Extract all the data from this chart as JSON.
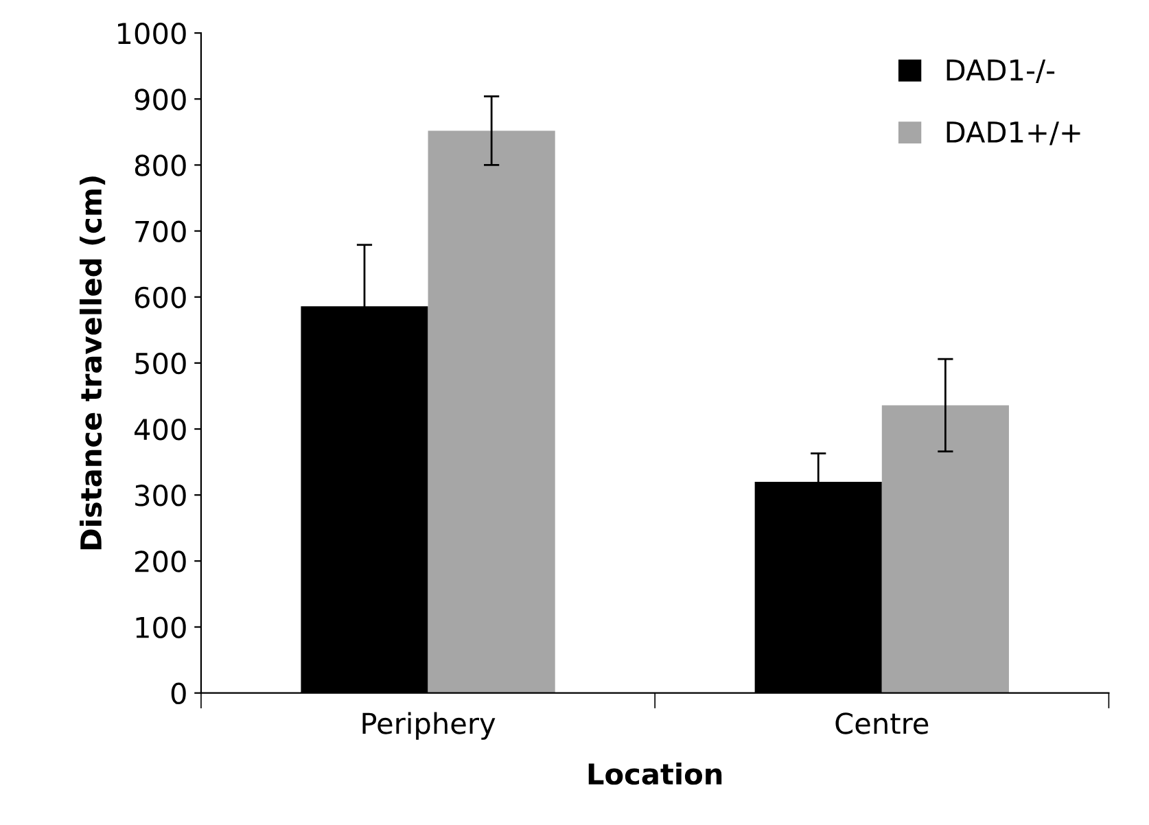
{
  "chart_data": {
    "type": "bar",
    "xlabel": "Location",
    "ylabel": "Distance travelled (cm)",
    "categories": [
      "Periphery",
      "Centre"
    ],
    "series": [
      {
        "name": "DAD1-/-",
        "color": "#000000",
        "values": [
          586,
          320
        ],
        "errors": [
          93,
          43
        ]
      },
      {
        "name": "DAD1+/+",
        "color": "#a6a6a6",
        "values": [
          852,
          436
        ],
        "errors": [
          52,
          70
        ]
      }
    ],
    "ylim": [
      0,
      1000
    ],
    "yticks": [
      0,
      100,
      200,
      300,
      400,
      500,
      600,
      700,
      800,
      900,
      1000
    ],
    "grid": false,
    "legend": "top right"
  }
}
